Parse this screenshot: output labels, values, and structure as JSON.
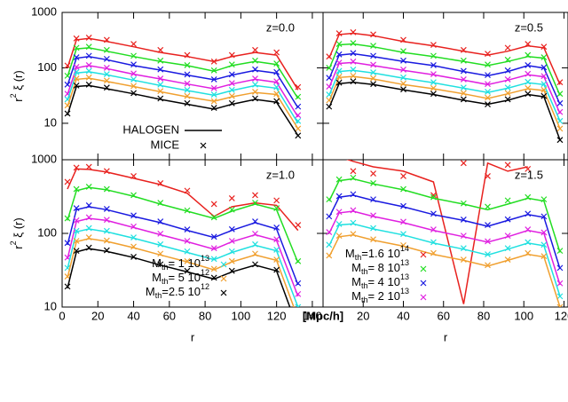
{
  "chart_data": [
    {
      "type": "line",
      "annotation": "z=0.0",
      "log_y": true,
      "xlim": [
        0,
        146
      ],
      "ylim": [
        2.2,
        1000
      ],
      "yticks": [
        10,
        100,
        1000
      ],
      "ylabel": [
        "r",
        "2",
        " ξ (r)"
      ],
      "legend_styles": [
        {
          "name": "HALOGEN",
          "style": "line"
        },
        {
          "name": "MICE",
          "style": "cross"
        }
      ],
      "x": [
        3,
        8,
        15,
        25,
        40,
        55,
        70,
        85,
        95,
        108,
        120,
        132
      ],
      "series": [
        {
          "color": "#e8211e",
          "values": [
            100,
            320,
            340,
            300,
            240,
            190,
            160,
            130,
            160,
            190,
            170,
            40
          ],
          "mice": [
            110,
            340,
            350,
            320,
            270,
            210,
            170,
            130,
            170,
            210,
            190,
            45
          ]
        },
        {
          "color": "#22dd22",
          "values": [
            69,
            220,
            230,
            200,
            160,
            130,
            110,
            87,
            110,
            130,
            115,
            28
          ],
          "mice": [
            72,
            230,
            240,
            210,
            165,
            135,
            112,
            90,
            115,
            135,
            120,
            30
          ]
        },
        {
          "color": "#1a1ae0",
          "values": [
            48,
            150,
            160,
            140,
            110,
            91,
            74,
            61,
            74,
            90,
            80,
            19
          ],
          "mice": [
            50,
            155,
            165,
            145,
            115,
            94,
            76,
            62,
            76,
            94,
            84,
            20
          ]
        },
        {
          "color": "#e020e0",
          "values": [
            33,
            100,
            110,
            97,
            77,
            63,
            51,
            42,
            51,
            62,
            55,
            13
          ],
          "mice": [
            34,
            104,
            112,
            100,
            79,
            64,
            52,
            43,
            53,
            64,
            57,
            14
          ]
        },
        {
          "color": "#20e0e0",
          "values": [
            26,
            81,
            85,
            75,
            60,
            48,
            39,
            32,
            39,
            48,
            43,
            10
          ],
          "mice": [
            27,
            84,
            88,
            77,
            62,
            50,
            40,
            33,
            40,
            50,
            45,
            11
          ]
        },
        {
          "color": "#f0a030",
          "values": [
            20,
            62,
            65,
            57,
            46,
            37,
            30,
            25,
            30,
            36,
            33,
            8
          ],
          "mice": [
            21,
            64,
            67,
            59,
            47,
            38,
            31,
            25,
            31,
            37,
            34,
            8
          ]
        },
        {
          "color": "#000000",
          "values": [
            14,
            46,
            48,
            42,
            34,
            27,
            22,
            18,
            22,
            27,
            24,
            6
          ],
          "mice": [
            15,
            48,
            50,
            44,
            35,
            28,
            23,
            19,
            23,
            28,
            25,
            6
          ]
        }
      ]
    },
    {
      "type": "line",
      "annotation": "z=0.5",
      "log_y": true,
      "xlim": [
        0,
        122
      ],
      "ylim": [
        2.2,
        1000
      ],
      "x": [
        3,
        8,
        15,
        25,
        40,
        55,
        70,
        82,
        92,
        102,
        110,
        118
      ],
      "series": [
        {
          "color": "#e8211e",
          "values": [
            150,
            400,
            420,
            380,
            300,
            250,
            200,
            170,
            200,
            250,
            230,
            50
          ],
          "mice": [
            160,
            420,
            440,
            400,
            320,
            260,
            210,
            180,
            230,
            270,
            240,
            55
          ]
        },
        {
          "color": "#22dd22",
          "values": [
            95,
            260,
            270,
            240,
            190,
            160,
            130,
            110,
            130,
            160,
            150,
            32
          ],
          "mice": [
            100,
            270,
            280,
            250,
            200,
            165,
            135,
            115,
            140,
            170,
            155,
            34
          ]
        },
        {
          "color": "#1a1ae0",
          "values": [
            63,
            170,
            180,
            160,
            130,
            110,
            86,
            72,
            86,
            110,
            99,
            22
          ],
          "mice": [
            66,
            175,
            185,
            165,
            135,
            112,
            88,
            74,
            90,
            112,
            102,
            23
          ]
        },
        {
          "color": "#e020e0",
          "values": [
            44,
            120,
            125,
            110,
            90,
            75,
            60,
            50,
            60,
            75,
            69,
            15
          ],
          "mice": [
            46,
            124,
            130,
            114,
            93,
            77,
            62,
            51,
            62,
            78,
            71,
            16
          ]
        },
        {
          "color": "#20e0e0",
          "values": [
            32,
            86,
            90,
            81,
            65,
            54,
            43,
            36,
            43,
            54,
            50,
            11
          ],
          "mice": [
            33,
            88,
            93,
            83,
            67,
            55,
            44,
            37,
            44,
            56,
            51,
            11
          ]
        },
        {
          "color": "#f0a030",
          "values": [
            25,
            67,
            70,
            63,
            50,
            42,
            34,
            28,
            34,
            42,
            39,
            8
          ],
          "mice": [
            26,
            69,
            72,
            65,
            52,
            43,
            35,
            29,
            35,
            43,
            40,
            8
          ]
        },
        {
          "color": "#000000",
          "values": [
            19,
            52,
            55,
            50,
            40,
            33,
            26,
            22,
            26,
            33,
            30,
            5
          ],
          "mice": [
            20,
            54,
            57,
            51,
            41,
            34,
            27,
            22,
            27,
            34,
            31,
            5
          ]
        }
      ]
    },
    {
      "type": "line",
      "annotation": "z=1.0",
      "log_y": true,
      "xlim": [
        0,
        146
      ],
      "ylim": [
        10,
        1000
      ],
      "yticks": [
        10,
        100,
        1000
      ],
      "xticks": [
        0,
        20,
        40,
        60,
        80,
        100,
        120,
        140
      ],
      "xlabel": "r",
      "xunit": "[Mpc/h]",
      "ylabel": [
        "r",
        "2",
        " ξ (r)"
      ],
      "x": [
        3,
        8,
        15,
        25,
        40,
        55,
        70,
        85,
        95,
        108,
        120,
        132
      ],
      "series": [
        {
          "color": "#e8211e",
          "values": [
            400,
            750,
            740,
            680,
            560,
            460,
            350,
            170,
            230,
            260,
            240,
            110
          ],
          "mice": [
            500,
            780,
            800,
            700,
            600,
            480,
            380,
            250,
            300,
            330,
            280,
            130
          ]
        },
        {
          "color": "#22dd22",
          "values": [
            150,
            380,
            420,
            390,
            320,
            250,
            200,
            160,
            200,
            250,
            210,
            40
          ],
          "mice": [
            160,
            400,
            430,
            400,
            330,
            260,
            205,
            165,
            210,
            260,
            220,
            42
          ]
        },
        {
          "color": "#1a1ae0",
          "values": [
            70,
            210,
            230,
            210,
            170,
            140,
            110,
            88,
            110,
            140,
            115,
            20
          ],
          "mice": [
            74,
            220,
            240,
            215,
            175,
            145,
            113,
            90,
            114,
            145,
            120,
            21
          ]
        },
        {
          "color": "#e020e0",
          "values": [
            45,
            145,
            160,
            150,
            120,
            96,
            77,
            61,
            77,
            96,
            80,
            14
          ],
          "mice": [
            47,
            150,
            165,
            153,
            124,
            99,
            79,
            63,
            79,
            99,
            83,
            15
          ]
        },
        {
          "name": [
            "M",
            "th",
            "= 1 10",
            "13"
          ],
          "color": "#20e0e0",
          "values": [
            33,
            105,
            115,
            105,
            86,
            69,
            55,
            44,
            55,
            69,
            58,
            10
          ],
          "mice": [
            34,
            108,
            118,
            108,
            88,
            71,
            57,
            45,
            57,
            71,
            60,
            10
          ]
        },
        {
          "name": [
            "M",
            "th",
            "= 5 10",
            "12"
          ],
          "color": "#f0a030",
          "values": [
            25,
            77,
            85,
            78,
            64,
            51,
            41,
            32,
            41,
            51,
            43,
            7
          ],
          "mice": [
            26,
            79,
            88,
            80,
            66,
            53,
            42,
            33,
            42,
            53,
            44,
            7
          ]
        },
        {
          "name": [
            "M",
            "th",
            "=2.5 10",
            "12"
          ],
          "color": "#000000",
          "values": [
            18,
            56,
            62,
            57,
            47,
            37,
            30,
            24,
            30,
            37,
            31,
            5
          ],
          "mice": [
            19,
            58,
            64,
            59,
            48,
            38,
            31,
            25,
            31,
            38,
            32,
            5
          ]
        }
      ]
    },
    {
      "type": "line",
      "annotation": "z=1.5",
      "log_y": true,
      "xlim": [
        0,
        122
      ],
      "ylim": [
        10,
        1000
      ],
      "xticks": [
        20,
        40,
        60,
        80,
        100,
        120
      ],
      "xlabel": "r",
      "x": [
        3,
        8,
        15,
        25,
        40,
        55,
        70,
        82,
        92,
        102,
        110,
        118
      ],
      "series": [
        {
          "name": [
            "M",
            "th",
            "=1.6 10",
            "14"
          ],
          "color": "#e8211e",
          "values": [
            1200,
            1100,
            950,
            800,
            700,
            500,
            11,
            900,
            700,
            800,
            null,
            null
          ],
          "mice": [
            1500,
            1100,
            700,
            650,
            600,
            330,
            900,
            600,
            850,
            750,
            null,
            null
          ]
        },
        {
          "name": [
            "M",
            "th",
            "= 8 10",
            "13"
          ],
          "color": "#22dd22",
          "values": [
            275,
            520,
            550,
            470,
            390,
            300,
            250,
            210,
            250,
            300,
            275,
            55
          ],
          "mice": [
            290,
            540,
            570,
            480,
            400,
            310,
            255,
            230,
            280,
            310,
            290,
            58
          ]
        },
        {
          "name": [
            "M",
            "th",
            "= 4 10",
            "13"
          ],
          "color": "#1a1ae0",
          "values": [
            165,
            310,
            330,
            280,
            230,
            180,
            150,
            125,
            150,
            180,
            165,
            33
          ],
          "mice": [
            170,
            320,
            340,
            290,
            235,
            185,
            154,
            130,
            155,
            185,
            170,
            34
          ]
        },
        {
          "name": [
            "M",
            "th",
            "= 2 10",
            "13"
          ],
          "color": "#e020e0",
          "values": [
            100,
            190,
            200,
            170,
            140,
            110,
            90,
            76,
            90,
            110,
            100,
            20
          ],
          "mice": [
            104,
            196,
            206,
            175,
            144,
            113,
            93,
            78,
            93,
            113,
            103,
            21
          ]
        },
        {
          "color": "#20e0e0",
          "values": [
            68,
            130,
            135,
            115,
            95,
            74,
            61,
            51,
            61,
            74,
            68,
            14
          ],
          "mice": [
            70,
            134,
            139,
            118,
            98,
            76,
            63,
            52,
            63,
            76,
            70,
            14
          ]
        },
        {
          "color": "#f0a030",
          "values": [
            48,
            90,
            95,
            81,
            67,
            52,
            43,
            36,
            43,
            52,
            48,
            10
          ],
          "mice": [
            50,
            93,
            98,
            83,
            69,
            54,
            44,
            37,
            44,
            54,
            49,
            10
          ]
        }
      ]
    }
  ]
}
